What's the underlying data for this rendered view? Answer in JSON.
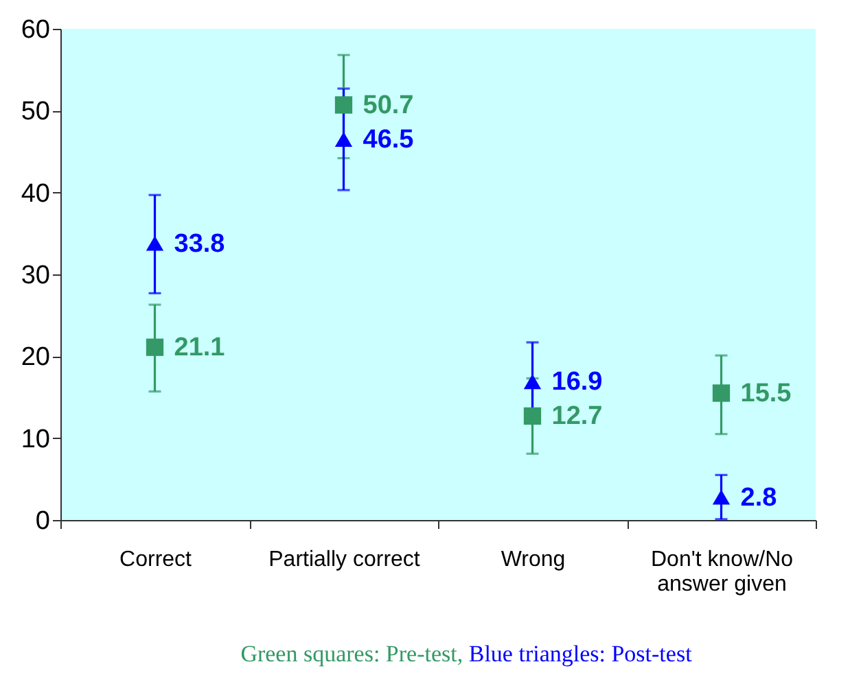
{
  "chart_data": {
    "type": "scatter",
    "categories": [
      "Correct",
      "Partially correct",
      "Wrong",
      "Don't know/No answer given"
    ],
    "series": [
      {
        "name": "Green squares: Pre-test,",
        "color": "#339966",
        "marker": "square",
        "values": [
          21.1,
          50.7,
          12.7,
          15.5
        ],
        "errors": [
          [
            15.7,
            26.3
          ],
          [
            44.2,
            56.8
          ],
          [
            8.1,
            17.3
          ],
          [
            10.5,
            20.1
          ]
        ]
      },
      {
        "name": "Blue triangles: Post-test",
        "color": "#0000ff",
        "marker": "triangle",
        "values": [
          33.8,
          46.5,
          16.9,
          2.8
        ],
        "errors": [
          [
            27.7,
            39.7
          ],
          [
            40.3,
            52.7
          ],
          [
            12.1,
            21.7
          ],
          [
            0.1,
            5.5
          ]
        ]
      }
    ],
    "data_labels": true,
    "legend": "bottom",
    "grid": false,
    "ylim": [
      0,
      60
    ],
    "yticks": [
      0,
      10,
      20,
      30,
      40,
      50,
      60
    ]
  }
}
